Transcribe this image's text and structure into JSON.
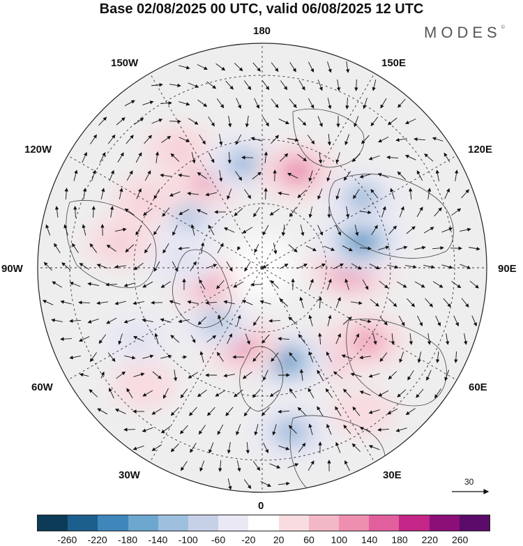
{
  "title": "Base 02/08/2025 00 UTC, valid 06/08/2025 12 UTC",
  "brand": "MODES",
  "brand_mark": "©",
  "longitude_labels": {
    "top": "180",
    "bottom": "0",
    "left": "90W",
    "right": "90E",
    "w150": "150W",
    "w120": "120W",
    "w60": "60W",
    "w30": "30W",
    "e150": "150E",
    "e120": "120E",
    "e60": "60E",
    "e30": "30E"
  },
  "vector_reference": {
    "label": "30",
    "icon": "arrow-right-icon"
  },
  "colorbar": {
    "ticks": [
      "-260",
      "-220",
      "-180",
      "-140",
      "-100",
      "-60",
      "-20",
      "20",
      "60",
      "100",
      "140",
      "180",
      "220",
      "260"
    ],
    "colors": [
      "#0c3b57",
      "#1d5f8c",
      "#3f86bb",
      "#6da7cf",
      "#9ec0de",
      "#c6d1e8",
      "#e9e8f4",
      "#ffffff",
      "#f8dce0",
      "#f3b8c7",
      "#ee8fb0",
      "#e05f9c",
      "#c32686",
      "#8c0f78",
      "#5b0c6a"
    ]
  },
  "map_features": [
    {
      "name": "positive-anomaly",
      "lon": 90,
      "lat": 62,
      "value": 200
    },
    {
      "name": "negative-anomaly",
      "lon": 105,
      "lat": 58,
      "value": -210
    },
    {
      "name": "positive-anomaly",
      "lon": 40,
      "lat": 55,
      "value": 120
    },
    {
      "name": "positive-anomaly",
      "lon": 55,
      "lat": 50,
      "value": 130
    },
    {
      "name": "negative-anomaly",
      "lon": 15,
      "lat": 60,
      "value": -190
    },
    {
      "name": "negative-anomaly",
      "lon": 10,
      "lat": 38,
      "value": -160
    },
    {
      "name": "positive-anomaly",
      "lon": -15,
      "lat": 65,
      "value": 150
    },
    {
      "name": "negative-anomaly",
      "lon": -40,
      "lat": 68,
      "value": -120
    },
    {
      "name": "positive-anomaly",
      "lon": -75,
      "lat": 72,
      "value": 120
    },
    {
      "name": "negative-anomaly",
      "lon": -95,
      "lat": 65,
      "value": -90
    },
    {
      "name": "positive-anomaly",
      "lon": -100,
      "lat": 45,
      "value": 90
    },
    {
      "name": "negative-anomaly",
      "lon": -125,
      "lat": 62,
      "value": -110
    },
    {
      "name": "positive-anomaly",
      "lon": -150,
      "lat": 58,
      "value": 150
    },
    {
      "name": "positive-anomaly",
      "lon": -145,
      "lat": 45,
      "value": 90
    },
    {
      "name": "negative-anomaly",
      "lon": -170,
      "lat": 57,
      "value": -150
    },
    {
      "name": "positive-anomaly",
      "lon": 160,
      "lat": 58,
      "value": 150
    },
    {
      "name": "negative-anomaly",
      "lon": 125,
      "lat": 52,
      "value": -140
    },
    {
      "name": "positive-anomaly",
      "lon": -120,
      "lat": 48,
      "value": 70
    },
    {
      "name": "negative-anomaly",
      "lon": -60,
      "lat": 45,
      "value": -70
    },
    {
      "name": "positive-anomaly",
      "lon": -45,
      "lat": 38,
      "value": 60
    },
    {
      "name": "positive-anomaly",
      "lon": 35,
      "lat": 35,
      "value": 60
    }
  ]
}
